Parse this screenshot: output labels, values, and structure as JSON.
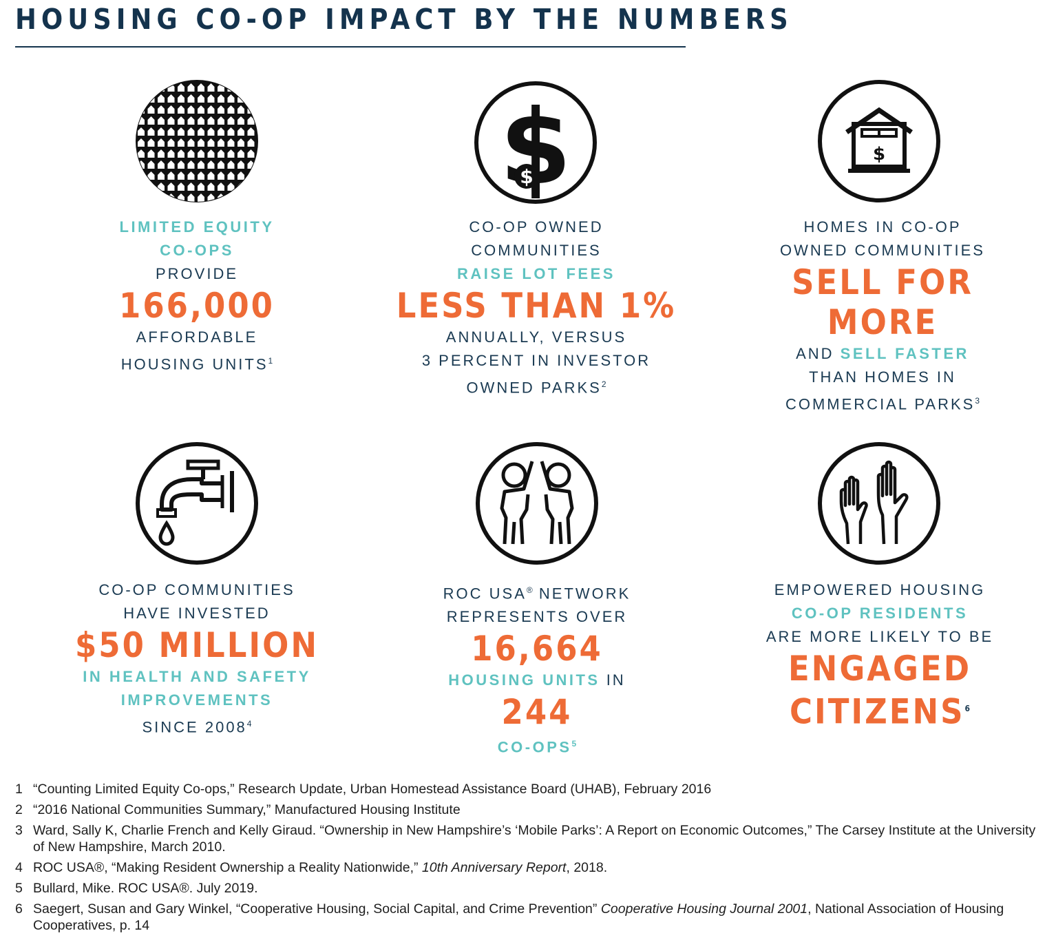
{
  "title": "HOUSING CO-OP IMPACT BY THE NUMBERS",
  "colors": {
    "navy": "#14334d",
    "teal": "#5fc2c0",
    "orange": "#ee6b36"
  },
  "tiles": [
    {
      "icon": "housing-grid-icon",
      "l1": "LIMITED EQUITY",
      "l2": "CO-OPS",
      "l3": "PROVIDE",
      "big": "166,000",
      "l4": "AFFORDABLE",
      "l5": "HOUSING UNITS",
      "sup": "1"
    },
    {
      "icon": "dollar-sign-icon",
      "l1": "CO-OP OWNED",
      "l2": "COMMUNITIES",
      "l3": "RAISE LOT FEES",
      "big": "LESS THAN 1%",
      "l4": "ANNUALLY, VERSUS",
      "l5": "3 PERCENT IN INVESTOR",
      "l6": "OWNED PARKS",
      "sup": "2"
    },
    {
      "icon": "house-dollar-icon",
      "l1": "HOMES IN CO-OP",
      "l2": "OWNED COMMUNITIES",
      "big1": "SELL FOR",
      "big2": "MORE",
      "l3a": "AND ",
      "l3b": "SELL FASTER",
      "l4": "THAN HOMES IN",
      "l5": "COMMERCIAL PARKS",
      "sup": "3"
    },
    {
      "icon": "water-faucet-icon",
      "l1": "CO-OP COMMUNITIES",
      "l2": "HAVE INVESTED",
      "big": "$50 MILLION",
      "l3": "IN HEALTH AND SAFETY",
      "l4": "IMPROVEMENTS",
      "l5": "SINCE 2008",
      "sup": "4"
    },
    {
      "icon": "people-high-five-icon",
      "l1": "ROC USA",
      "reg": "®",
      "l1b": " NETWORK",
      "l2": "REPRESENTS OVER",
      "big1": "16,664",
      "l3a": "HOUSING UNITS",
      "l3b": " IN",
      "big2": "244",
      "l4": "CO-OPS",
      "sup": "5"
    },
    {
      "icon": "raised-hands-icon",
      "l1": "EMPOWERED HOUSING",
      "l2": "CO-OP RESIDENTS",
      "l3": "ARE MORE LIKELY TO BE",
      "big1": "ENGAGED",
      "big2": "CITIZENS",
      "sup": "6"
    }
  ],
  "footnotes": [
    {
      "n": "1",
      "text": "“Counting Limited Equity Co-ops,” Research Update, Urban Homestead Assistance Board (UHAB), February 2016"
    },
    {
      "n": "2",
      "text": "“2016 National Communities Summary,” Manufactured Housing Institute"
    },
    {
      "n": "3",
      "text": "Ward, Sally K, Charlie French and Kelly Giraud. “Ownership in New Hampshire’s ‘Mobile Parks’: A Report on Economic Outcomes,” The Carsey Institute at the University of New Hampshire, March 2010."
    },
    {
      "n": "4",
      "a": "ROC USA®, “Making Resident Ownership a Reality Nationwide,” ",
      "i": "10th Anniversary Report",
      "b": ", 2018."
    },
    {
      "n": "5",
      "text": "Bullard, Mike. ROC USA®. July 2019."
    },
    {
      "n": "6",
      "a": "Saegert, Susan and Gary Winkel, “Cooperative Housing, Social Capital, and Crime Prevention” ",
      "i": "Cooperative Housing Journal 2001",
      "b": ", National Association of Housing Cooperatives, p. 14"
    }
  ]
}
